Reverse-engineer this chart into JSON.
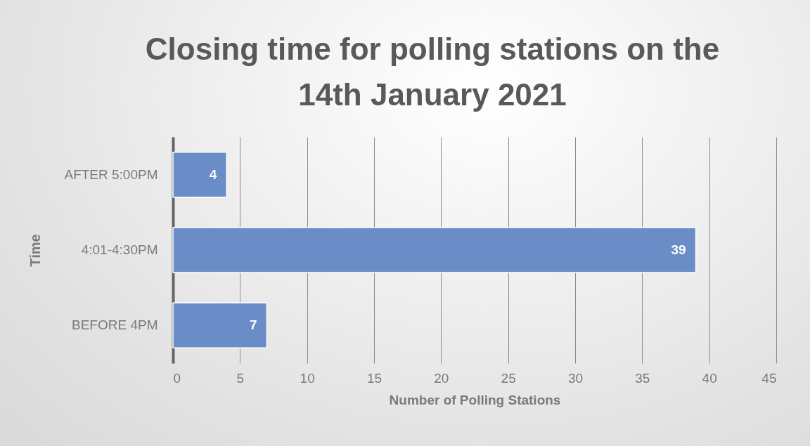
{
  "chart_data": {
    "type": "bar",
    "orientation": "horizontal",
    "title": "Closing time for polling stations on the 14th January 2021",
    "xlabel": "Number of Polling Stations",
    "ylabel": "Time",
    "categories": [
      "AFTER 5:00PM",
      "4:01-4:30PM",
      "BEFORE 4PM"
    ],
    "values": [
      4,
      39,
      7
    ],
    "color": "#6a8cc7",
    "xlim": [
      0,
      45
    ],
    "xticks": [
      0,
      5,
      10,
      15,
      20,
      25,
      30,
      35,
      40,
      45
    ],
    "grid": "x",
    "data_labels": true
  }
}
